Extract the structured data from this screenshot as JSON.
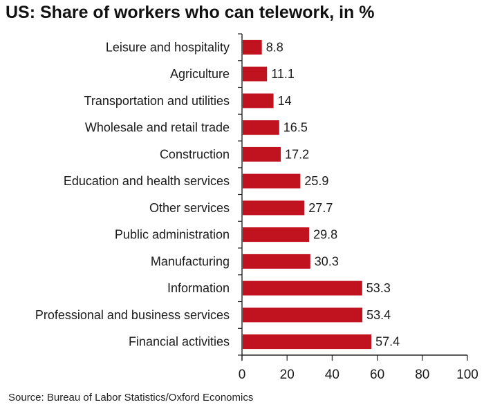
{
  "title": "US: Share of workers who can telework, in %",
  "source": "Source: Bureau of Labor Statistics/Oxford Economics",
  "colors": {
    "bar": "#c0121f",
    "axis": "#222222",
    "text": "#1a1a1a"
  },
  "chart_data": {
    "type": "bar",
    "orientation": "horizontal",
    "title": "US: Share of workers who can telework, in %",
    "xlabel": "",
    "ylabel": "",
    "xlim": [
      0,
      100
    ],
    "xticks": [
      0,
      20,
      40,
      60,
      80,
      100
    ],
    "grid": false,
    "categories": [
      "Leisure and hospitality",
      "Agriculture",
      "Transportation and utilities",
      "Wholesale and retail trade",
      "Construction",
      "Education and health services",
      "Other services",
      "Public administration",
      "Manufacturing",
      "Information",
      "Professional and business services",
      "Financial activities"
    ],
    "values": [
      8.8,
      11.1,
      14,
      16.5,
      17.2,
      25.9,
      27.7,
      29.8,
      30.3,
      53.3,
      53.4,
      57.4
    ],
    "data_labels": [
      "8.8",
      "11.1",
      "14",
      "16.5",
      "17.2",
      "25.9",
      "27.7",
      "29.8",
      "30.3",
      "53.3",
      "53.4",
      "57.4"
    ]
  }
}
